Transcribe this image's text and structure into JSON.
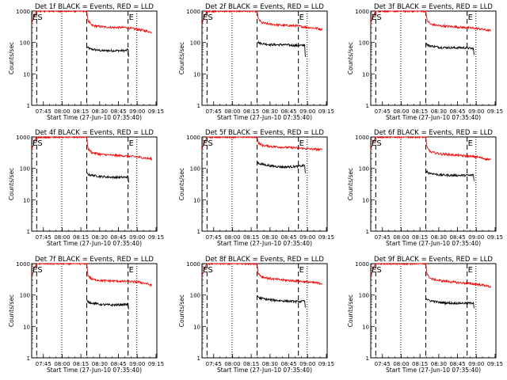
{
  "x_tick_labels": [
    "07:45",
    "08:00",
    "08:15",
    "08:30",
    "08:45",
    "09:00",
    "09:15"
  ],
  "y_tick_labels": [
    "1",
    "10",
    "100",
    "1000"
  ],
  "ylabel": "Counts/sec",
  "xlabel": "Start Time (27-Jun-10 07:35:40)",
  "markers": {
    "start": "ES",
    "end": "E"
  },
  "colors": {
    "events": "#000000",
    "lld": "#ff0000",
    "frame": "#000000"
  },
  "chart_data": [
    {
      "type": "line",
      "title": "Det 1f BLACK = Events, RED = LLD",
      "x_unit": "minutes after 07:35:40",
      "xlim": [
        0,
        100
      ],
      "ylim": [
        1,
        1000
      ],
      "yscale": "log",
      "vlines": {
        "dashed": [
          4,
          44,
          77
        ],
        "dotted": [
          24,
          84
        ]
      },
      "series": [
        {
          "name": "BLACK = Events",
          "color": "#000000",
          "x": [
            44,
            47,
            55,
            65,
            75,
            77,
            77.5
          ],
          "y": [
            70,
            62,
            55,
            55,
            55,
            60,
            35
          ]
        },
        {
          "name": "RED = LLD",
          "color": "#ff0000",
          "x": [
            0,
            2,
            4,
            5,
            44,
            45,
            48,
            55,
            65,
            75,
            85,
            92,
            96
          ],
          "y": [
            400,
            700,
            1000,
            1000,
            1000,
            500,
            350,
            320,
            300,
            300,
            260,
            230,
            210
          ]
        }
      ]
    },
    {
      "type": "line",
      "title": "Det 2f BLACK = Events, RED = LLD",
      "x_unit": "minutes after 07:35:40",
      "xlim": [
        0,
        100
      ],
      "ylim": [
        1,
        1000
      ],
      "yscale": "log",
      "vlines": {
        "dashed": [
          4,
          44,
          77
        ],
        "dotted": [
          24,
          84
        ]
      },
      "series": [
        {
          "name": "BLACK = Events",
          "color": "#000000",
          "x": [
            44,
            46,
            55,
            65,
            75,
            80,
            82,
            82.5
          ],
          "y": [
            110,
            95,
            85,
            85,
            80,
            80,
            85,
            35
          ]
        },
        {
          "name": "RED = LLD",
          "color": "#ff0000",
          "x": [
            0,
            2,
            4,
            5,
            44,
            45,
            48,
            55,
            65,
            75,
            85,
            92,
            96
          ],
          "y": [
            400,
            700,
            1000,
            1000,
            1000,
            550,
            420,
            380,
            350,
            340,
            300,
            280,
            260
          ]
        }
      ]
    },
    {
      "type": "line",
      "title": "Det 3f BLACK = Events, RED = LLD",
      "x_unit": "minutes after 07:35:40",
      "xlim": [
        0,
        100
      ],
      "ylim": [
        1,
        1000
      ],
      "yscale": "log",
      "vlines": {
        "dashed": [
          4,
          44,
          77
        ],
        "dotted": [
          24,
          84
        ]
      },
      "series": [
        {
          "name": "BLACK = Events",
          "color": "#000000",
          "x": [
            44,
            46,
            55,
            65,
            75,
            80,
            82,
            82.5
          ],
          "y": [
            95,
            80,
            70,
            68,
            68,
            65,
            65,
            40
          ]
        },
        {
          "name": "RED = LLD",
          "color": "#ff0000",
          "x": [
            0,
            2,
            4,
            5,
            44,
            45,
            48,
            55,
            65,
            75,
            85,
            92,
            96
          ],
          "y": [
            400,
            700,
            1000,
            1000,
            1000,
            500,
            380,
            340,
            320,
            300,
            280,
            250,
            240
          ]
        }
      ]
    },
    {
      "type": "line",
      "title": "Det 4f BLACK = Events, RED = LLD",
      "x_unit": "minutes after 07:35:40",
      "xlim": [
        0,
        100
      ],
      "ylim": [
        1,
        1000
      ],
      "yscale": "log",
      "vlines": {
        "dashed": [
          4,
          44,
          77
        ],
        "dotted": [
          24,
          84
        ]
      },
      "series": [
        {
          "name": "BLACK = Events",
          "color": "#000000",
          "x": [
            44,
            46,
            55,
            65,
            75,
            77,
            77.5
          ],
          "y": [
            70,
            62,
            55,
            52,
            52,
            55,
            35
          ]
        },
        {
          "name": "RED = LLD",
          "color": "#ff0000",
          "x": [
            0,
            2,
            4,
            5,
            44,
            45,
            48,
            55,
            65,
            75,
            85,
            92,
            96
          ],
          "y": [
            400,
            700,
            1000,
            1000,
            1000,
            420,
            320,
            280,
            260,
            250,
            230,
            210,
            200
          ]
        }
      ]
    },
    {
      "type": "line",
      "title": "Det 5f BLACK = Events, RED = LLD",
      "x_unit": "minutes after 07:35:40",
      "xlim": [
        0,
        100
      ],
      "ylim": [
        1,
        1000
      ],
      "yscale": "log",
      "vlines": {
        "dashed": [
          4,
          44,
          77
        ],
        "dotted": [
          24,
          84
        ]
      },
      "series": [
        {
          "name": "BLACK = Events",
          "color": "#000000",
          "x": [
            44,
            46,
            55,
            65,
            75,
            80,
            82,
            82.5
          ],
          "y": [
            160,
            140,
            120,
            110,
            115,
            120,
            125,
            70
          ]
        },
        {
          "name": "RED = LLD",
          "color": "#ff0000",
          "x": [
            0,
            2,
            4,
            5,
            44,
            45,
            48,
            55,
            65,
            75,
            85,
            92,
            96
          ],
          "y": [
            400,
            700,
            1000,
            1000,
            1000,
            650,
            540,
            500,
            470,
            450,
            420,
            400,
            390
          ]
        }
      ]
    },
    {
      "type": "line",
      "title": "Det 6f BLACK = Events, RED = LLD",
      "x_unit": "minutes after 07:35:40",
      "xlim": [
        0,
        100
      ],
      "ylim": [
        1,
        1000
      ],
      "yscale": "log",
      "vlines": {
        "dashed": [
          4,
          44,
          77
        ],
        "dotted": [
          24,
          84
        ]
      },
      "series": [
        {
          "name": "BLACK = Events",
          "color": "#000000",
          "x": [
            44,
            46,
            55,
            65,
            75,
            80,
            82,
            82.5
          ],
          "y": [
            85,
            72,
            62,
            60,
            60,
            60,
            62,
            40
          ]
        },
        {
          "name": "RED = LLD",
          "color": "#ff0000",
          "x": [
            0,
            2,
            4,
            5,
            44,
            45,
            48,
            55,
            65,
            75,
            85,
            92,
            96
          ],
          "y": [
            400,
            700,
            1000,
            1000,
            1000,
            450,
            330,
            290,
            270,
            250,
            230,
            200,
            190
          ]
        }
      ]
    },
    {
      "type": "line",
      "title": "Det 7f BLACK = Events, RED = LLD",
      "x_unit": "minutes after 07:35:40",
      "xlim": [
        0,
        100
      ],
      "ylim": [
        1,
        1000
      ],
      "yscale": "log",
      "vlines": {
        "dashed": [
          4,
          44,
          77
        ],
        "dotted": [
          24,
          84
        ]
      },
      "series": [
        {
          "name": "BLACK = Events",
          "color": "#000000",
          "x": [
            44,
            46,
            55,
            65,
            75,
            77,
            77.5
          ],
          "y": [
            65,
            58,
            50,
            48,
            50,
            50,
            35
          ]
        },
        {
          "name": "RED = LLD",
          "color": "#ff0000",
          "x": [
            0,
            2,
            4,
            5,
            44,
            45,
            48,
            55,
            65,
            75,
            85,
            92,
            96
          ],
          "y": [
            400,
            700,
            1000,
            1000,
            1000,
            420,
            320,
            290,
            280,
            270,
            260,
            230,
            200
          ]
        }
      ]
    },
    {
      "type": "line",
      "title": "Det 8f BLACK = Events, RED = LLD",
      "x_unit": "minutes after 07:35:40",
      "xlim": [
        0,
        100
      ],
      "ylim": [
        1,
        1000
      ],
      "yscale": "log",
      "vlines": {
        "dashed": [
          4,
          44,
          77
        ],
        "dotted": [
          24,
          84
        ]
      },
      "series": [
        {
          "name": "BLACK = Events",
          "color": "#000000",
          "x": [
            44,
            46,
            55,
            65,
            75,
            80,
            82,
            82.5
          ],
          "y": [
            95,
            80,
            70,
            65,
            62,
            62,
            65,
            40
          ]
        },
        {
          "name": "RED = LLD",
          "color": "#ff0000",
          "x": [
            0,
            2,
            4,
            5,
            44,
            45,
            48,
            55,
            65,
            75,
            85,
            92,
            96
          ],
          "y": [
            400,
            700,
            1000,
            1000,
            1000,
            480,
            380,
            330,
            300,
            280,
            260,
            240,
            230
          ]
        }
      ]
    },
    {
      "type": "line",
      "title": "Det 9f BLACK = Events, RED = LLD",
      "x_unit": "minutes after 07:35:40",
      "xlim": [
        0,
        100
      ],
      "ylim": [
        1,
        1000
      ],
      "yscale": "log",
      "vlines": {
        "dashed": [
          4,
          44,
          77
        ],
        "dotted": [
          24,
          84
        ]
      },
      "series": [
        {
          "name": "BLACK = Events",
          "color": "#000000",
          "x": [
            44,
            46,
            55,
            65,
            75,
            80,
            82,
            82.5
          ],
          "y": [
            80,
            68,
            58,
            55,
            55,
            55,
            58,
            38
          ]
        },
        {
          "name": "RED = LLD",
          "color": "#ff0000",
          "x": [
            0,
            2,
            4,
            5,
            44,
            45,
            48,
            55,
            65,
            75,
            85,
            92,
            96
          ],
          "y": [
            400,
            700,
            1000,
            1000,
            1000,
            450,
            330,
            290,
            260,
            240,
            220,
            200,
            180
          ]
        }
      ]
    }
  ]
}
